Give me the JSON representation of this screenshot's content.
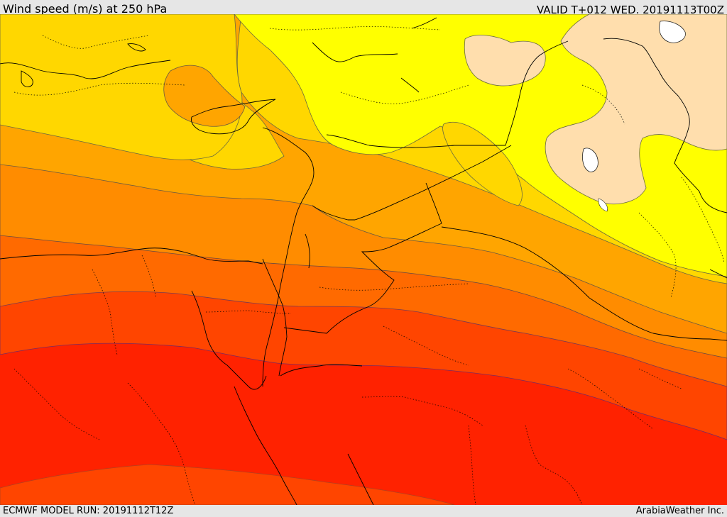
{
  "header": {
    "title": "Wind speed (m/s) at 250 hPa",
    "valid_time": "VALID T+012 WED. 20191113T00Z"
  },
  "footer": {
    "model_run": "ECMWF MODEL RUN: 20191112T12Z",
    "credit": "ArabiaWeather Inc."
  },
  "map": {
    "type": "filled-contour",
    "variable": "wind speed",
    "units": "m/s",
    "level": "250 hPa",
    "colors": {
      "bisque": "#ffdead",
      "yellow": "#ffff00",
      "gold": "#ffd700",
      "orange_light": "#ffa500",
      "orange": "#ff8c00",
      "dark_orange": "#ff6a00",
      "red_orange": "#ff4500",
      "red": "#ff2200",
      "contour_line": "#555555",
      "land_water": "#ffffff"
    }
  }
}
